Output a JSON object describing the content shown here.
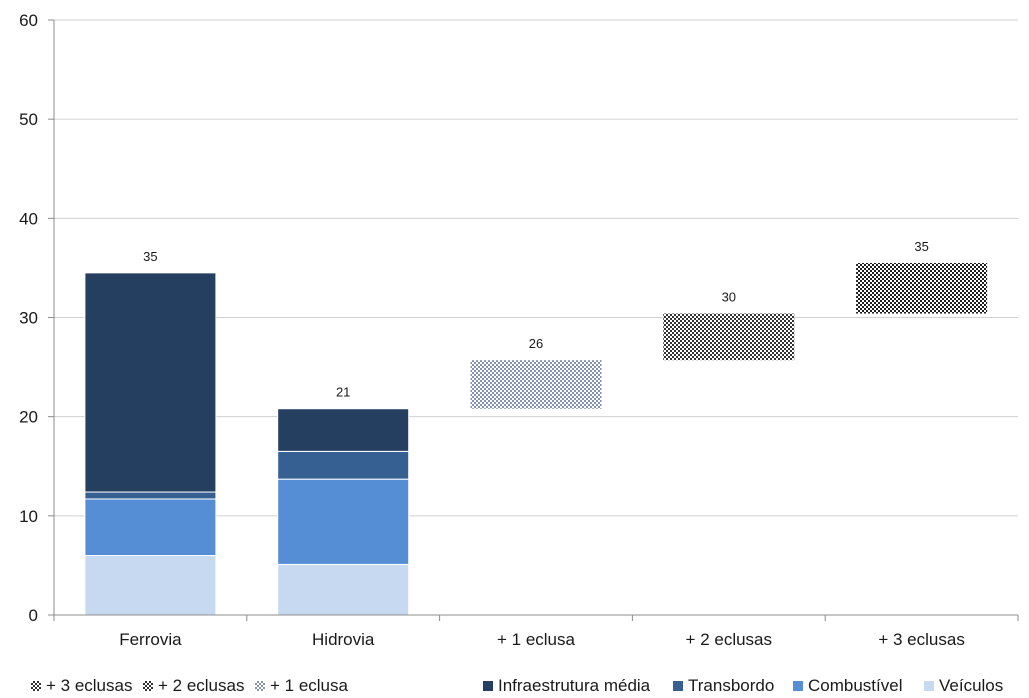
{
  "chart_data": {
    "type": "bar",
    "stacked": true,
    "waterfall": true,
    "categories": [
      "Ferrovia",
      "Hidrovia",
      "+ 1 eclusa",
      "+ 2 eclusas",
      "+ 3 eclusas"
    ],
    "ylim": [
      0,
      60
    ],
    "yticks": [
      "0",
      "10",
      "20",
      "30",
      "40",
      "50",
      "60"
    ],
    "grid": true,
    "legend_position": "bottom",
    "series": [
      {
        "name": "Veículos",
        "color": "#c6d9f1",
        "values": [
          6.0,
          5.1,
          null,
          null,
          null
        ]
      },
      {
        "name": "Combustível",
        "color": "#558ed5",
        "values": [
          5.7,
          8.6,
          null,
          null,
          null
        ]
      },
      {
        "name": "Transbordo",
        "color": "#376092",
        "values": [
          0.7,
          2.8,
          null,
          null,
          null
        ]
      },
      {
        "name": "Infraestrutura média",
        "color": "#243f60",
        "values": [
          22.1,
          4.3,
          null,
          null,
          null
        ]
      },
      {
        "name": "+ 1 eclusa",
        "color": "#b8c6dc",
        "pattern": "fine-checker",
        "values": [
          null,
          null,
          4.9,
          null,
          null
        ],
        "base": [
          null,
          null,
          20.8,
          null,
          null
        ]
      },
      {
        "name": "+ 2 eclusas",
        "color": "#404040",
        "pattern": "checker",
        "values": [
          null,
          null,
          null,
          4.7,
          null
        ],
        "base": [
          null,
          null,
          null,
          25.7,
          null
        ]
      },
      {
        "name": "+ 3 eclusas",
        "color": "#303030",
        "pattern": "checker",
        "values": [
          null,
          null,
          null,
          null,
          5.1
        ],
        "base": [
          null,
          null,
          null,
          null,
          30.4
        ]
      }
    ],
    "totals": [
      34.5,
      20.8,
      25.7,
      30.4,
      35.5
    ],
    "data_labels": [
      "35",
      "21",
      "26",
      "30",
      "35"
    ],
    "legend_order": [
      "+ 3 eclusas",
      "+ 2 eclusas",
      "+ 1 eclusa",
      "Infraestrutura média",
      "Transbordo",
      "Combustível",
      "Veículos"
    ]
  }
}
